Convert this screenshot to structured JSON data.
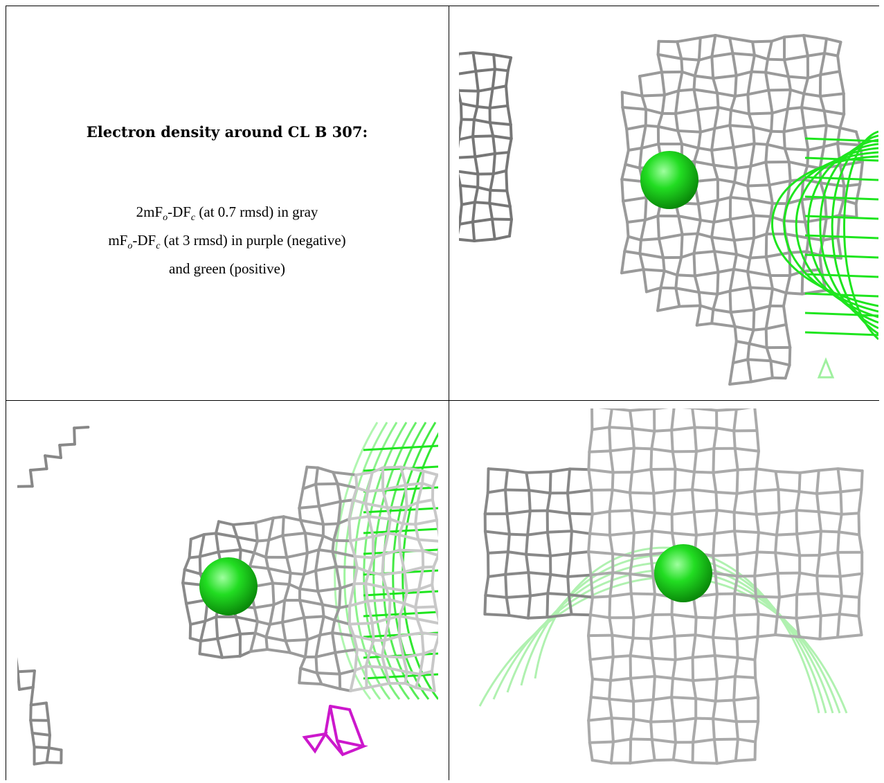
{
  "caption": {
    "title": "Electron density around CL B 307:",
    "line1": {
      "prefix": "2mF",
      "sub1": "o",
      "mid": "-DF",
      "sub2": "c",
      "suffix": " (at 0.7 rmsd) in gray"
    },
    "line2": {
      "prefix": "mF",
      "sub1": "o",
      "mid": "-DF",
      "sub2": "c",
      "suffix": " (at 3 rmsd) in purple (negative)"
    },
    "line3": "and green (positive)"
  },
  "colors": {
    "mesh_gray": "#9a9a9a",
    "mesh_dark": "#5f5f5f",
    "positive_green": "#1ee51e",
    "negative_purple": "#cc18cc",
    "sphere_green": "#22dd22"
  },
  "panels": [
    {
      "name": "view-top-right",
      "atom": "CL B 307"
    },
    {
      "name": "view-bottom-left",
      "atom": "CL B 307"
    },
    {
      "name": "view-bottom-right",
      "atom": "CL B 307"
    }
  ]
}
